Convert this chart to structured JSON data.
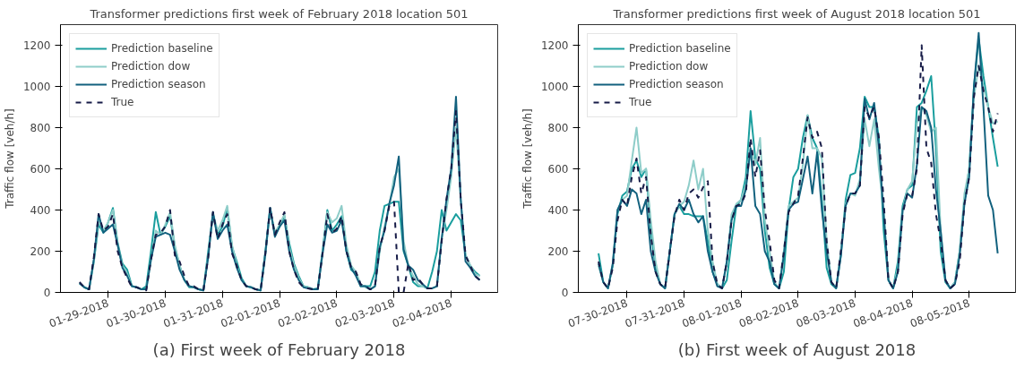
{
  "chart_data": [
    {
      "type": "line",
      "title": "Transformer predictions first week of February 2018 location 501",
      "ylabel": "Traffic flow [veh/h]",
      "annotations": [
        "(a) First week of February 2018"
      ],
      "legend": "top left",
      "grid": false,
      "xlim": [
        "2018-01-28T04:00",
        "2018-02-04T19:30"
      ],
      "ylim": [
        0,
        1300
      ],
      "yticks": [
        0,
        200,
        400,
        600,
        800,
        1000,
        1200
      ],
      "xticks": [
        {
          "value": "2018-01-29",
          "label": "01-29-2018"
        },
        {
          "value": "2018-01-30",
          "label": "01-30-2018"
        },
        {
          "value": "2018-01-31",
          "label": "01-31-2018"
        },
        {
          "value": "2018-02-01",
          "label": "02-01-2018"
        },
        {
          "value": "2018-02-02",
          "label": "02-02-2018"
        },
        {
          "value": "2018-02-03",
          "label": "02-03-2018"
        },
        {
          "value": "2018-02-04",
          "label": "02-04-2018"
        }
      ],
      "x": [
        "2018-01-28T12:00",
        "2018-01-28T14:00",
        "2018-01-28T16:00",
        "2018-01-28T18:00",
        "2018-01-28T20:00",
        "2018-01-28T22:00",
        "2018-01-29T00:00",
        "2018-01-29T02:00",
        "2018-01-29T04:00",
        "2018-01-29T06:00",
        "2018-01-29T08:00",
        "2018-01-29T10:00",
        "2018-01-29T12:00",
        "2018-01-29T14:00",
        "2018-01-29T16:00",
        "2018-01-29T18:00",
        "2018-01-29T20:00",
        "2018-01-29T22:00",
        "2018-01-30T00:00",
        "2018-01-30T02:00",
        "2018-01-30T04:00",
        "2018-01-30T06:00",
        "2018-01-30T08:00",
        "2018-01-30T10:00",
        "2018-01-30T12:00",
        "2018-01-30T14:00",
        "2018-01-30T16:00",
        "2018-01-30T18:00",
        "2018-01-30T20:00",
        "2018-01-30T22:00",
        "2018-01-31T00:00",
        "2018-01-31T02:00",
        "2018-01-31T04:00",
        "2018-01-31T06:00",
        "2018-01-31T08:00",
        "2018-01-31T10:00",
        "2018-01-31T12:00",
        "2018-01-31T14:00",
        "2018-01-31T16:00",
        "2018-01-31T18:00",
        "2018-01-31T20:00",
        "2018-01-31T22:00",
        "2018-02-01T00:00",
        "2018-02-01T02:00",
        "2018-02-01T04:00",
        "2018-02-01T06:00",
        "2018-02-01T08:00",
        "2018-02-01T10:00",
        "2018-02-01T12:00",
        "2018-02-01T14:00",
        "2018-02-01T16:00",
        "2018-02-01T18:00",
        "2018-02-01T20:00",
        "2018-02-01T22:00",
        "2018-02-02T00:00",
        "2018-02-02T02:00",
        "2018-02-02T04:00",
        "2018-02-02T06:00",
        "2018-02-02T08:00",
        "2018-02-02T10:00",
        "2018-02-02T12:00",
        "2018-02-02T14:00",
        "2018-02-02T16:00",
        "2018-02-02T18:00",
        "2018-02-02T20:00",
        "2018-02-02T22:00",
        "2018-02-03T00:00",
        "2018-02-03T02:00",
        "2018-02-03T04:00",
        "2018-02-03T06:00",
        "2018-02-03T08:00",
        "2018-02-03T10:00",
        "2018-02-03T12:00",
        "2018-02-03T14:00",
        "2018-02-03T16:00",
        "2018-02-03T18:00",
        "2018-02-03T20:00",
        "2018-02-03T22:00",
        "2018-02-04T00:00",
        "2018-02-04T02:00",
        "2018-02-04T04:00",
        "2018-02-04T06:00",
        "2018-02-04T08:00",
        "2018-02-04T10:00",
        "2018-02-04T12:00"
      ],
      "series": [
        {
          "name": "Prediction baseline",
          "color": "#1a9e9e",
          "line_style": "solid",
          "values": [
            45,
            25,
            15,
            150,
            330,
            290,
            340,
            410,
            240,
            140,
            110,
            30,
            25,
            15,
            30,
            200,
            390,
            280,
            320,
            370,
            220,
            130,
            60,
            25,
            25,
            15,
            10,
            200,
            380,
            280,
            320,
            410,
            220,
            150,
            70,
            30,
            25,
            15,
            10,
            200,
            410,
            280,
            320,
            370,
            240,
            140,
            80,
            30,
            25,
            15,
            20,
            200,
            400,
            300,
            330,
            370,
            200,
            110,
            90,
            30,
            30,
            30,
            100,
            300,
            420,
            430,
            440,
            440,
            200,
            130,
            50,
            30,
            30,
            20,
            100,
            200,
            400,
            300,
            340,
            380,
            350,
            180,
            130,
            100,
            80
          ]
        },
        {
          "name": "Prediction dow",
          "color": "#8ecdc9",
          "line_style": "solid",
          "values": [
            45,
            25,
            15,
            150,
            350,
            300,
            340,
            400,
            230,
            130,
            90,
            30,
            25,
            15,
            15,
            160,
            300,
            280,
            330,
            390,
            230,
            130,
            60,
            30,
            25,
            15,
            10,
            180,
            380,
            300,
            350,
            420,
            230,
            130,
            60,
            30,
            25,
            15,
            10,
            180,
            400,
            290,
            330,
            380,
            220,
            130,
            70,
            30,
            25,
            15,
            15,
            190,
            390,
            340,
            360,
            420,
            230,
            130,
            100,
            40,
            25,
            15,
            30,
            200,
            320,
            420,
            560,
            600,
            250,
            130,
            80,
            40,
            30,
            20,
            20,
            30,
            260,
            400,
            560,
            800,
            450,
            180,
            130,
            90,
            80
          ]
        },
        {
          "name": "Prediction season",
          "color": "#12617e",
          "line_style": "solid",
          "values": [
            45,
            25,
            15,
            160,
            380,
            290,
            310,
            330,
            230,
            120,
            80,
            30,
            25,
            15,
            15,
            160,
            270,
            280,
            290,
            280,
            200,
            110,
            60,
            30,
            25,
            15,
            10,
            170,
            390,
            260,
            300,
            330,
            200,
            120,
            60,
            30,
            25,
            15,
            10,
            190,
            410,
            270,
            320,
            350,
            200,
            110,
            60,
            25,
            20,
            15,
            15,
            190,
            330,
            290,
            300,
            350,
            200,
            120,
            80,
            30,
            30,
            15,
            30,
            220,
            300,
            430,
            520,
            660,
            210,
            130,
            110,
            60,
            40,
            20,
            20,
            30,
            260,
            450,
            600,
            950,
            450,
            150,
            120,
            80,
            60
          ]
        },
        {
          "name": "True",
          "color": "#161b47",
          "line_style": "dashed",
          "values": [
            50,
            25,
            15,
            170,
            380,
            300,
            320,
            380,
            200,
            120,
            70,
            25,
            25,
            15,
            10,
            160,
            280,
            290,
            320,
            400,
            180,
            150,
            80,
            30,
            30,
            15,
            10,
            170,
            390,
            260,
            330,
            380,
            190,
            130,
            60,
            30,
            25,
            15,
            10,
            190,
            410,
            280,
            340,
            390,
            200,
            110,
            50,
            25,
            20,
            15,
            15,
            190,
            380,
            290,
            310,
            370,
            200,
            120,
            100,
            40,
            30,
            15,
            30,
            220,
            300,
            420,
            440,
            0,
            0,
            140,
            60,
            70,
            40,
            20,
            20,
            30,
            250,
            450,
            600,
            880,
            450,
            180,
            130,
            80,
            60
          ]
        }
      ]
    },
    {
      "type": "line",
      "title": "Transformer predictions first week of August 2018 location 501",
      "ylabel": "Traffic flow [veh/h]",
      "annotations": [
        "(b) First week of August 2018"
      ],
      "legend": "top left",
      "grid": false,
      "xlim": [
        "2018-07-29T03:30",
        "2018-08-05T19:30"
      ],
      "ylim": [
        0,
        1300
      ],
      "yticks": [
        0,
        200,
        400,
        600,
        800,
        1000,
        1200
      ],
      "xticks": [
        {
          "value": "2018-07-30",
          "label": "07-30-2018"
        },
        {
          "value": "2018-07-31",
          "label": "07-31-2018"
        },
        {
          "value": "2018-08-01",
          "label": "08-01-2018"
        },
        {
          "value": "2018-08-02",
          "label": "08-02-2018"
        },
        {
          "value": "2018-08-03",
          "label": "08-03-2018"
        },
        {
          "value": "2018-08-04",
          "label": "08-04-2018"
        },
        {
          "value": "2018-08-05",
          "label": "08-05-2018"
        }
      ],
      "x": [
        "2018-07-29T12:00",
        "2018-07-29T14:00",
        "2018-07-29T16:00",
        "2018-07-29T18:00",
        "2018-07-29T20:00",
        "2018-07-29T22:00",
        "2018-07-30T00:00",
        "2018-07-30T02:00",
        "2018-07-30T04:00",
        "2018-07-30T06:00",
        "2018-07-30T08:00",
        "2018-07-30T10:00",
        "2018-07-30T12:00",
        "2018-07-30T14:00",
        "2018-07-30T16:00",
        "2018-07-30T18:00",
        "2018-07-30T20:00",
        "2018-07-30T22:00",
        "2018-07-31T00:00",
        "2018-07-31T02:00",
        "2018-07-31T04:00",
        "2018-07-31T06:00",
        "2018-07-31T08:00",
        "2018-07-31T10:00",
        "2018-07-31T12:00",
        "2018-07-31T14:00",
        "2018-07-31T16:00",
        "2018-07-31T18:00",
        "2018-07-31T20:00",
        "2018-07-31T22:00",
        "2018-08-01T00:00",
        "2018-08-01T02:00",
        "2018-08-01T04:00",
        "2018-08-01T06:00",
        "2018-08-01T08:00",
        "2018-08-01T10:00",
        "2018-08-01T12:00",
        "2018-08-01T14:00",
        "2018-08-01T16:00",
        "2018-08-01T18:00",
        "2018-08-01T20:00",
        "2018-08-01T22:00",
        "2018-08-02T00:00",
        "2018-08-02T02:00",
        "2018-08-02T04:00",
        "2018-08-02T06:00",
        "2018-08-02T08:00",
        "2018-08-02T10:00",
        "2018-08-02T12:00",
        "2018-08-02T14:00",
        "2018-08-02T16:00",
        "2018-08-02T18:00",
        "2018-08-02T20:00",
        "2018-08-02T22:00",
        "2018-08-03T00:00",
        "2018-08-03T02:00",
        "2018-08-03T04:00",
        "2018-08-03T06:00",
        "2018-08-03T08:00",
        "2018-08-03T10:00",
        "2018-08-03T12:00",
        "2018-08-03T14:00",
        "2018-08-03T16:00",
        "2018-08-03T18:00",
        "2018-08-03T20:00",
        "2018-08-03T22:00",
        "2018-08-04T00:00",
        "2018-08-04T02:00",
        "2018-08-04T04:00",
        "2018-08-04T06:00",
        "2018-08-04T08:00",
        "2018-08-04T10:00",
        "2018-08-04T12:00",
        "2018-08-04T14:00",
        "2018-08-04T16:00",
        "2018-08-04T18:00",
        "2018-08-04T20:00",
        "2018-08-04T22:00",
        "2018-08-05T00:00",
        "2018-08-05T02:00",
        "2018-08-05T04:00",
        "2018-08-05T06:00",
        "2018-08-05T08:00",
        "2018-08-05T10:00",
        "2018-08-05T12:00"
      ],
      "series": [
        {
          "name": "Prediction baseline",
          "color": "#1a9e9e",
          "line_style": "solid",
          "values": [
            190,
            50,
            20,
            130,
            380,
            470,
            490,
            600,
            640,
            560,
            600,
            300,
            120,
            40,
            20,
            200,
            380,
            420,
            380,
            380,
            370,
            370,
            370,
            250,
            100,
            40,
            20,
            60,
            250,
            420,
            450,
            560,
            880,
            650,
            600,
            300,
            120,
            40,
            20,
            100,
            400,
            560,
            600,
            750,
            860,
            750,
            700,
            450,
            120,
            40,
            20,
            180,
            450,
            570,
            580,
            700,
            950,
            900,
            900,
            750,
            300,
            60,
            20,
            150,
            420,
            500,
            520,
            900,
            920,
            980,
            1050,
            700,
            200,
            50,
            20,
            50,
            200,
            450,
            600,
            1000,
            1230,
            1050,
            900,
            750,
            610
          ]
        },
        {
          "name": "Prediction dow",
          "color": "#8ecdc9",
          "line_style": "solid",
          "values": [
            130,
            50,
            20,
            140,
            400,
            450,
            470,
            640,
            800,
            580,
            600,
            350,
            150,
            40,
            20,
            200,
            380,
            420,
            440,
            520,
            640,
            500,
            600,
            300,
            150,
            40,
            20,
            150,
            380,
            430,
            450,
            520,
            700,
            620,
            750,
            350,
            200,
            50,
            20,
            200,
            420,
            440,
            460,
            620,
            860,
            700,
            700,
            650,
            250,
            50,
            20,
            200,
            430,
            480,
            470,
            550,
            840,
            710,
            840,
            600,
            400,
            60,
            20,
            120,
            400,
            500,
            540,
            820,
            900,
            860,
            780,
            800,
            300,
            60,
            20,
            50,
            200,
            480,
            600,
            950,
            1100,
            1000,
            900,
            820,
            830
          ]
        },
        {
          "name": "Prediction season",
          "color": "#12617e",
          "line_style": "solid",
          "values": [
            140,
            50,
            20,
            140,
            400,
            450,
            420,
            500,
            480,
            380,
            450,
            200,
            100,
            40,
            20,
            200,
            380,
            430,
            400,
            450,
            380,
            340,
            370,
            200,
            100,
            30,
            20,
            150,
            350,
            420,
            420,
            500,
            700,
            420,
            380,
            200,
            150,
            40,
            20,
            180,
            400,
            430,
            440,
            550,
            660,
            480,
            680,
            400,
            200,
            50,
            20,
            180,
            420,
            480,
            480,
            520,
            940,
            840,
            920,
            700,
            380,
            60,
            20,
            100,
            400,
            480,
            460,
            620,
            900,
            880,
            800,
            500,
            300,
            60,
            20,
            40,
            180,
            430,
            560,
            1000,
            1260,
            900,
            470,
            400,
            190
          ]
        },
        {
          "name": "True",
          "color": "#161b47",
          "line_style": "dashed",
          "values": [
            150,
            50,
            20,
            120,
            350,
            450,
            420,
            560,
            650,
            480,
            560,
            280,
            100,
            40,
            20,
            200,
            370,
            450,
            400,
            480,
            500,
            460,
            510,
            540,
            150,
            40,
            20,
            150,
            350,
            420,
            430,
            480,
            750,
            560,
            690,
            400,
            250,
            60,
            20,
            200,
            390,
            430,
            470,
            650,
            850,
            750,
            780,
            700,
            250,
            50,
            20,
            200,
            420,
            480,
            480,
            520,
            900,
            850,
            900,
            750,
            450,
            60,
            20,
            100,
            380,
            480,
            470,
            600,
            1200,
            700,
            630,
            380,
            250,
            60,
            20,
            40,
            150,
            430,
            560,
            950,
            1100,
            980,
            900,
            780,
            870
          ]
        }
      ]
    }
  ]
}
